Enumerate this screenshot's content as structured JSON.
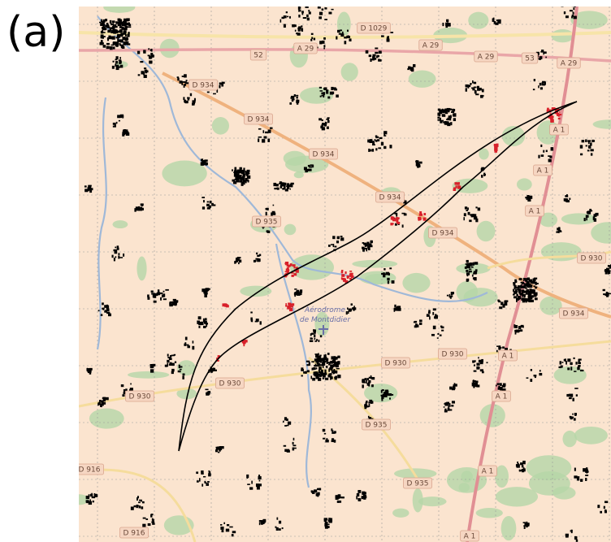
{
  "panel_label": "(a)",
  "road_labels": [
    "D 1029",
    "A 29",
    "A 29",
    "A 29",
    "A 29",
    "52",
    "53",
    "D 934",
    "D 934",
    "D 934",
    "D 934",
    "D 934",
    "D 935",
    "A 1",
    "A 1",
    "A 1",
    "D 930",
    "D 934",
    "D 930",
    "D 930",
    "D 930",
    "D 930",
    "A 1",
    "A 1",
    "D 935",
    "D 935",
    "A 1",
    "D 916",
    "D 916",
    "A 1"
  ],
  "airfield": [
    "Aérodrome",
    "de Montdidier"
  ]
}
